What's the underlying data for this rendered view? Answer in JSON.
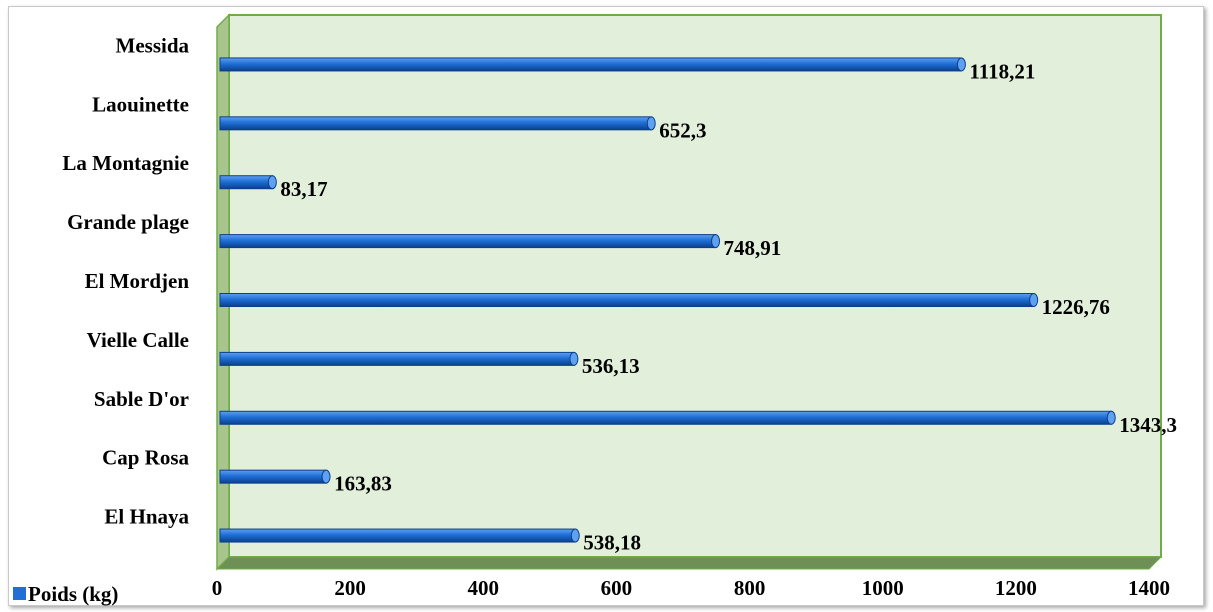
{
  "chart_data": {
    "type": "bar",
    "orientation": "horizontal",
    "categories": [
      "El Hnaya",
      "Cap Rosa",
      "Sable D'or",
      "Vielle Calle",
      "El Mordjen",
      "Grande plage",
      "La Montagnie",
      "Laouinette",
      "Messida"
    ],
    "series": [
      {
        "name": "Poids (kg)",
        "values": [
          538.18,
          163.83,
          1343.3,
          536.13,
          1226.76,
          748.91,
          83.17,
          652.3,
          1118.21
        ],
        "labels": [
          "538,18",
          "163,83",
          "1343,3",
          "536,13",
          "1226,76",
          "748,91",
          "83,17",
          "652,3",
          "1118,21"
        ]
      }
    ],
    "xlim": [
      0,
      1400
    ],
    "xticks": [
      0,
      200,
      400,
      600,
      800,
      1000,
      1200,
      1400
    ],
    "tick_labels": [
      "0",
      "200",
      "400",
      "600",
      "800",
      "1000",
      "1200",
      "1400"
    ],
    "title": "",
    "xlabel": "",
    "ylabel": "",
    "grid": false,
    "legend": "bottom-left",
    "colors": {
      "bar": "#1f6fd6",
      "bar_dark": "#0b3f8c",
      "bar_light": "#5fa0f0",
      "plot_area": "#e2efda",
      "floor": "#6e8f55",
      "wall_side": "#a9c58e",
      "border": "#70ad47"
    }
  }
}
